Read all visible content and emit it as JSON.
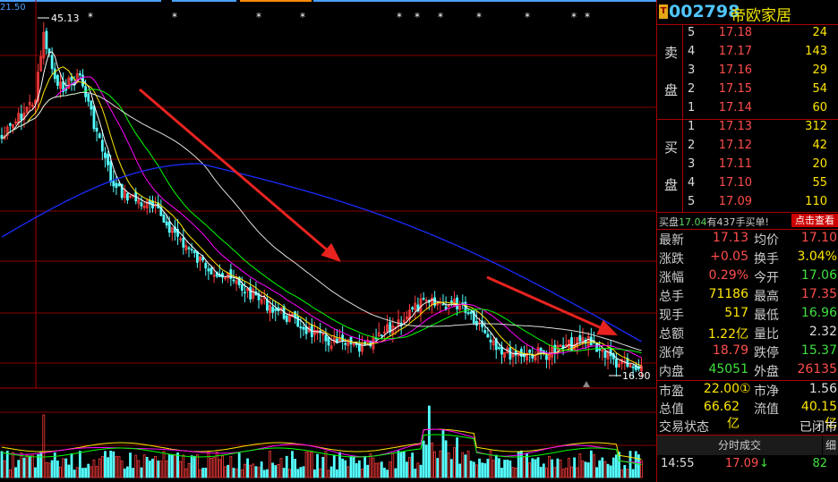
{
  "chart": {
    "price_high_label": "45.13",
    "price_low_label": "16.90",
    "price_top_axis": "21.50",
    "star_glyph": "*",
    "colors": {
      "grid": "#8a0000",
      "up": "#ff3c3c",
      "down": "#54ffff",
      "ma5": "#ffffff",
      "ma10": "#ffe600",
      "ma20": "#ff00ff",
      "ma30": "#00ff00",
      "ma60": "#ffffff",
      "ma120": "#1a2cff",
      "arrow": "#e8231f"
    }
  },
  "stock": {
    "tag": "T",
    "code": "002798",
    "name": "帝欧家居"
  },
  "order_book": {
    "sell_label_1": "卖",
    "sell_label_2": "盘",
    "buy_label_1": "买",
    "buy_label_2": "盘",
    "asks": [
      {
        "level": "5",
        "price": "17.18",
        "vol": "24"
      },
      {
        "level": "4",
        "price": "17.17",
        "vol": "143"
      },
      {
        "level": "3",
        "price": "17.16",
        "vol": "29"
      },
      {
        "level": "2",
        "price": "17.15",
        "vol": "54"
      },
      {
        "level": "1",
        "price": "17.14",
        "vol": "60"
      }
    ],
    "bids": [
      {
        "level": "1",
        "price": "17.13",
        "vol": "312"
      },
      {
        "level": "2",
        "price": "17.12",
        "vol": "42"
      },
      {
        "level": "3",
        "price": "17.11",
        "vol": "20"
      },
      {
        "level": "4",
        "price": "17.10",
        "vol": "55"
      },
      {
        "level": "5",
        "price": "17.09",
        "vol": "110"
      }
    ]
  },
  "notice": {
    "prefix": "买盘",
    "price": "17.04",
    "suffix": "有437手买单!",
    "button": "点击查看"
  },
  "quote": [
    {
      "k1": "最新",
      "v1": "17.13",
      "c1": "red",
      "k2": "均价",
      "v2": "17.10",
      "c2": "red"
    },
    {
      "k1": "涨跌",
      "v1": "+0.05",
      "c1": "red",
      "k2": "换手",
      "v2": "3.04%",
      "c2": "yel"
    },
    {
      "k1": "涨幅",
      "v1": "0.29%",
      "c1": "red",
      "k2": "今开",
      "v2": "17.06",
      "c2": "grn"
    },
    {
      "k1": "总手",
      "v1": "71186",
      "c1": "yel",
      "k2": "最高",
      "v2": "17.35",
      "c2": "red"
    },
    {
      "k1": "现手",
      "v1": "517",
      "c1": "yel",
      "k2": "最低",
      "v2": "16.96",
      "c2": "grn"
    },
    {
      "k1": "总额",
      "v1": "1.22亿",
      "c1": "yel",
      "k2": "量比",
      "v2": "2.32",
      "c2": "wht"
    },
    {
      "k1": "涨停",
      "v1": "18.79",
      "c1": "red",
      "k2": "跌停",
      "v2": "15.37",
      "c2": "grn"
    },
    {
      "k1": "内盘",
      "v1": "45051",
      "c1": "grn",
      "k2": "外盘",
      "v2": "26135",
      "c2": "red"
    }
  ],
  "fundamentals": [
    {
      "k1": "市盈",
      "v1": "22.00",
      "badge": "①",
      "c1": "yel",
      "k2": "市净",
      "v2": "1.56",
      "c2": "wht"
    },
    {
      "k1": "总值",
      "v1": "66.62亿",
      "c1": "yel",
      "k2": "流值",
      "v2": "40.15亿",
      "c2": "yel"
    },
    {
      "k1": "交易状态",
      "v1": "",
      "c1": "wht",
      "k2": "",
      "v2": "已闭市",
      "c2": "wht"
    }
  ],
  "tabs": {
    "ticks": "分时成交",
    "detail": "细"
  },
  "last_trade": {
    "time": "14:55",
    "price": "17.09",
    "arrow": "↓",
    "vol": "82"
  }
}
